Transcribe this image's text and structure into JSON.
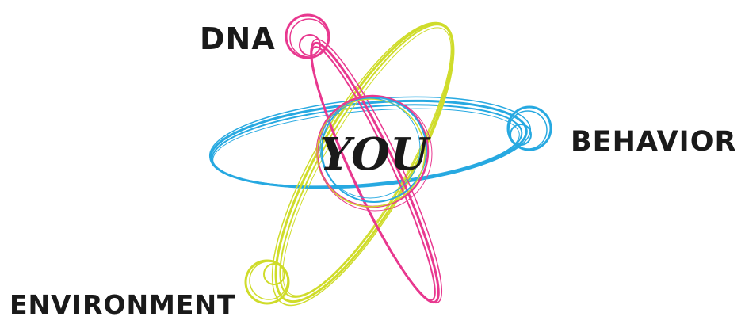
{
  "labels": {
    "center": "YOU",
    "dna": "DNA",
    "behavior": "BEHAVIOR",
    "environment": "ENVIRONMENT"
  },
  "colors": {
    "dna": "#e8388f",
    "behavior": "#27a9e1",
    "environment": "#cfdc2a",
    "text": "#1a1a1a"
  }
}
